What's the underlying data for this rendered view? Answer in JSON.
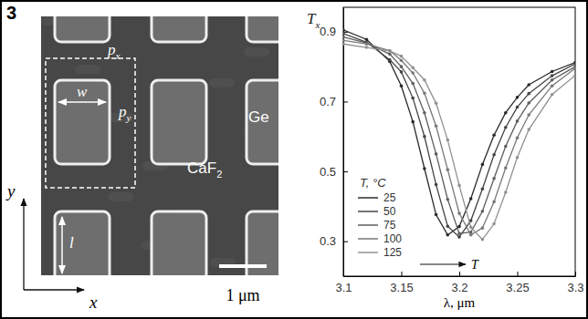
{
  "figure_label": "3",
  "image": {
    "labels": {
      "px": {
        "text": "p",
        "sub": "x"
      },
      "py": {
        "text": "p",
        "sub": "y"
      },
      "w": {
        "text": "w"
      },
      "l": {
        "text": "l"
      },
      "ge": {
        "text": "Ge"
      },
      "caf2": {
        "text": "CaF",
        "sub": "2"
      }
    },
    "scale_bar": "1 μm",
    "axes": {
      "x": "x",
      "y": "y"
    }
  },
  "chart_data": {
    "type": "line",
    "x_label": "λ, μm",
    "y_label": {
      "text": "T",
      "sub": "x"
    },
    "legend_title": "T, °C",
    "legend": "lower-left",
    "annotation": {
      "text": "T"
    },
    "marker": "circle",
    "line_style": "solid",
    "xlim": [
      3.1,
      3.3
    ],
    "xticks": [
      3.1,
      3.15,
      3.2,
      3.25,
      3.3
    ],
    "ylim": [
      0.2,
      0.97
    ],
    "yticks": [
      0.3,
      0.5,
      0.7,
      0.9
    ],
    "x": [
      3.1,
      3.12,
      3.14,
      3.15,
      3.16,
      3.17,
      3.18,
      3.19,
      3.2,
      3.21,
      3.22,
      3.23,
      3.24,
      3.25,
      3.26,
      3.28,
      3.3
    ],
    "series": [
      {
        "name": "25",
        "color": "#2a2a2a",
        "values": [
          0.905,
          0.878,
          0.815,
          0.745,
          0.642,
          0.508,
          0.376,
          0.318,
          0.342,
          0.422,
          0.52,
          0.604,
          0.668,
          0.712,
          0.748,
          0.786,
          0.812
        ]
      },
      {
        "name": "50",
        "color": "#444444",
        "values": [
          0.895,
          0.87,
          0.82,
          0.785,
          0.71,
          0.6,
          0.462,
          0.343,
          0.312,
          0.359,
          0.45,
          0.548,
          0.626,
          0.684,
          0.723,
          0.774,
          0.808
        ]
      },
      {
        "name": "75",
        "color": "#5e5e5e",
        "values": [
          0.885,
          0.868,
          0.836,
          0.8,
          0.752,
          0.668,
          0.55,
          0.42,
          0.322,
          0.326,
          0.386,
          0.48,
          0.572,
          0.644,
          0.696,
          0.762,
          0.8
        ]
      },
      {
        "name": "100",
        "color": "#787878",
        "values": [
          0.875,
          0.865,
          0.846,
          0.818,
          0.782,
          0.724,
          0.63,
          0.505,
          0.38,
          0.318,
          0.338,
          0.413,
          0.51,
          0.596,
          0.662,
          0.745,
          0.795
        ]
      },
      {
        "name": "125",
        "color": "#929292",
        "values": [
          0.865,
          0.855,
          0.845,
          0.83,
          0.797,
          0.762,
          0.695,
          0.59,
          0.46,
          0.34,
          0.305,
          0.35,
          0.44,
          0.54,
          0.62,
          0.72,
          0.775
        ]
      }
    ]
  }
}
